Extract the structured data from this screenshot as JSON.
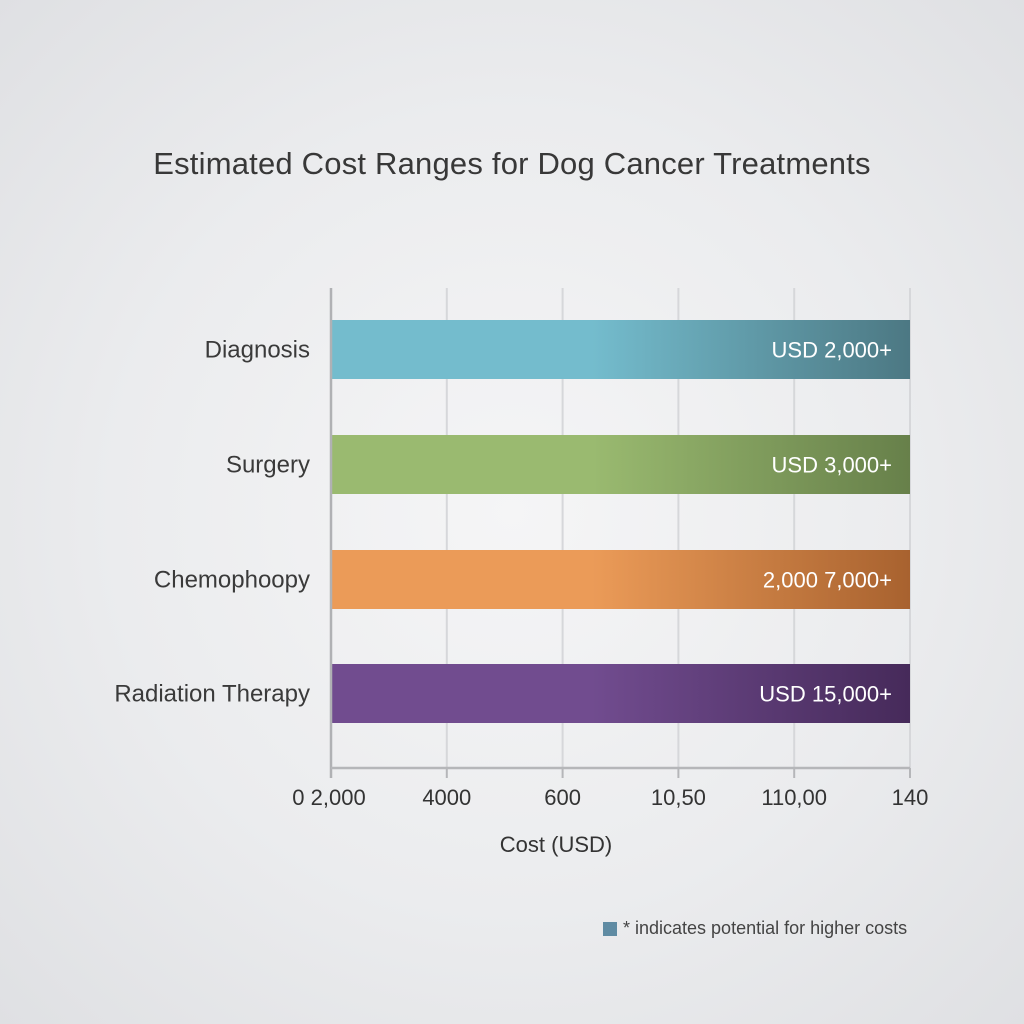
{
  "chart_data": {
    "type": "bar",
    "orientation": "horizontal",
    "title": "Estimated Cost Ranges for Dog Cancer Treatments",
    "xlabel": "Cost (USD)",
    "ylabel": "",
    "categories": [
      "Diagnosis",
      "Surgery",
      "Chemophoopy",
      "Radiation Therapy"
    ],
    "values": [
      1,
      1,
      1,
      1
    ],
    "value_labels": [
      "USD 2,000+",
      "USD 3,000+",
      "2,000 7,000+",
      "USD 15,000+"
    ],
    "colors": [
      {
        "start": "#74bccd",
        "end": "#4c7883"
      },
      {
        "start": "#9aba70",
        "end": "#67804a"
      },
      {
        "start": "#eb9b58",
        "end": "#a8622f"
      },
      {
        "start": "#714c8f",
        "end": "#462a5a"
      }
    ],
    "x_tick_labels": [
      "0 2,000",
      "4000",
      "600",
      "10,50",
      "110,00",
      "140"
    ],
    "xlim": [
      0,
      1
    ],
    "grid": true,
    "note": {
      "swatch_color": "#5f8ba3",
      "text": "* indicates potential for higher costs"
    }
  }
}
